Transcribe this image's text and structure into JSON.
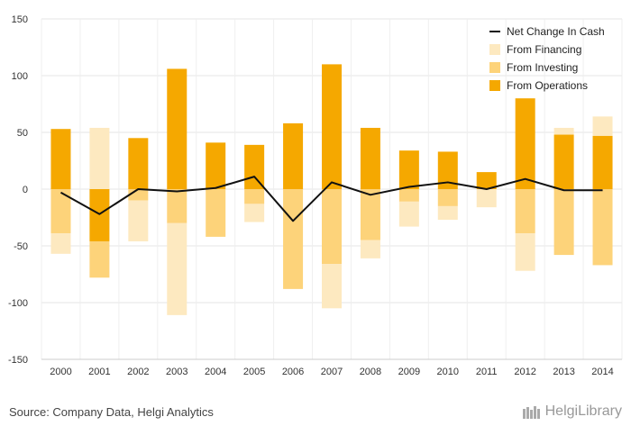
{
  "chart_data": {
    "type": "bar",
    "categories": [
      "2000",
      "2001",
      "2002",
      "2003",
      "2004",
      "2005",
      "2006",
      "2007",
      "2008",
      "2009",
      "2010",
      "2011",
      "2012",
      "2013",
      "2014"
    ],
    "series": [
      {
        "name": "From Operations",
        "kind": "bar",
        "color": "#f5a800",
        "values": [
          53,
          -46,
          45,
          106,
          41,
          39,
          58,
          110,
          54,
          34,
          33,
          15,
          80,
          48,
          47
        ]
      },
      {
        "name": "From Investing",
        "kind": "bar",
        "color": "#fdd37a",
        "values": [
          -39,
          -32,
          -10,
          -30,
          -42,
          -13,
          -88,
          -66,
          -45,
          -11,
          -15,
          0,
          -39,
          -58,
          -67
        ]
      },
      {
        "name": "From Financing",
        "kind": "bar",
        "color": "#fde9c0",
        "values": [
          -18,
          54,
          -36,
          -81,
          0,
          -16,
          0,
          -39,
          -16,
          -22,
          -12,
          -16,
          -33,
          6,
          17
        ]
      },
      {
        "name": "Net Change In Cash",
        "kind": "line",
        "color": "#111111",
        "values": [
          -3,
          -22,
          0,
          -2,
          1,
          11,
          -28,
          6,
          -5,
          2,
          6,
          0,
          9,
          -1,
          -1
        ]
      }
    ],
    "ylim": [
      -150,
      150
    ],
    "yticks": [
      -150,
      -100,
      -50,
      0,
      50,
      100,
      150
    ],
    "grid": true,
    "legend_position": "top-right",
    "legend_order": [
      "Net Change In Cash",
      "From Financing",
      "From Investing",
      "From Operations"
    ]
  },
  "footer": {
    "source": "Source: Company Data, Helgi Analytics",
    "brand": "HelgiLibrary"
  }
}
